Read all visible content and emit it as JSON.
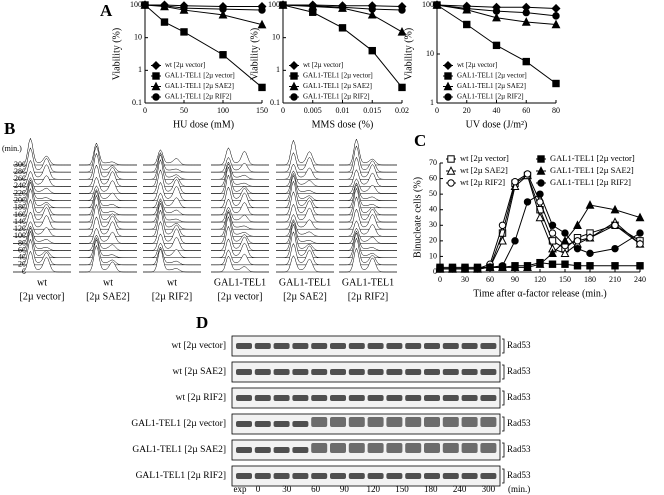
{
  "panel_labels": [
    "A",
    "B",
    "C",
    "D"
  ],
  "chart_data": [
    {
      "type": "line",
      "xlabel": "HU dose (mM)",
      "ylabel": "Viability (%)",
      "x": [
        0,
        25,
        50,
        100,
        150
      ],
      "xlim": [
        0,
        150
      ],
      "xticks": [
        0,
        50,
        100,
        150
      ],
      "ylim": [
        0.1,
        100
      ],
      "yticks": [
        0.1,
        1,
        10,
        100
      ],
      "yscale": "log",
      "legend": "lower left",
      "legend_columns": 1,
      "series": [
        {
          "name": "wt [2µ vector]",
          "color": "#000000",
          "marker": "diamond",
          "filled": true,
          "values": [
            100,
            100,
            95,
            90,
            90
          ]
        },
        {
          "name": "GAL1-TEL1 [2µ vector]",
          "color": "#000000",
          "marker": "square",
          "filled": true,
          "values": [
            100,
            30,
            15,
            3,
            0.3
          ]
        },
        {
          "name": "GAL1-TEL1 [2µ SAE2]",
          "color": "#000000",
          "marker": "triangle",
          "filled": true,
          "values": [
            100,
            90,
            70,
            50,
            25
          ]
        },
        {
          "name": "GAL1-TEL1 [2µ RIF2]",
          "color": "#000000",
          "marker": "circle",
          "filled": true,
          "values": [
            100,
            95,
            80,
            75,
            70
          ]
        }
      ]
    },
    {
      "type": "line",
      "xlabel": "MMS dose (%)",
      "ylabel": "Viability (%)",
      "x": [
        0,
        0.005,
        0.01,
        0.015,
        0.02
      ],
      "xlim": [
        0,
        0.02
      ],
      "xticks": [
        0,
        0.005,
        0.01,
        0.015,
        0.02
      ],
      "ylim": [
        0.1,
        100
      ],
      "yticks": [
        0.1,
        1,
        10,
        100
      ],
      "yscale": "log",
      "legend": "lower left",
      "legend_columns": 1,
      "series": [
        {
          "name": "wt [2µ vector]",
          "color": "#000000",
          "marker": "diamond",
          "filled": true,
          "values": [
            100,
            100,
            95,
            95,
            90
          ]
        },
        {
          "name": "GAL1-TEL1 [2µ vector]",
          "color": "#000000",
          "marker": "square",
          "filled": true,
          "values": [
            100,
            60,
            20,
            4,
            0.3
          ]
        },
        {
          "name": "GAL1-TEL1 [2µ SAE2]",
          "color": "#000000",
          "marker": "triangle",
          "filled": true,
          "values": [
            100,
            90,
            80,
            50,
            15
          ]
        },
        {
          "name": "GAL1-TEL1 [2µ RIF2]",
          "color": "#000000",
          "marker": "circle",
          "filled": true,
          "values": [
            100,
            95,
            85,
            75,
            70
          ]
        }
      ]
    },
    {
      "type": "line",
      "xlabel": "UV dose (J/m²)",
      "ylabel": "Viability (%)",
      "x": [
        0,
        20,
        40,
        60,
        80
      ],
      "xlim": [
        0,
        80
      ],
      "xticks": [
        0,
        20,
        40,
        60,
        80
      ],
      "ylim": [
        1,
        100
      ],
      "yticks": [
        1,
        10,
        100
      ],
      "yscale": "log",
      "legend": "lower left",
      "legend_columns": 1,
      "series": [
        {
          "name": "wt [2µ vector]",
          "color": "#000000",
          "marker": "diamond",
          "filled": true,
          "values": [
            100,
            95,
            90,
            90,
            85
          ]
        },
        {
          "name": "GAL1-TEL1 [2µ vector]",
          "color": "#000000",
          "marker": "square",
          "filled": true,
          "values": [
            100,
            40,
            15,
            7,
            2.5
          ]
        },
        {
          "name": "GAL1-TEL1 [2µ SAE2]",
          "color": "#000000",
          "marker": "triangle",
          "filled": true,
          "values": [
            100,
            80,
            55,
            45,
            40
          ]
        },
        {
          "name": "GAL1-TEL1 [2µ RIF2]",
          "color": "#000000",
          "marker": "circle",
          "filled": true,
          "values": [
            100,
            85,
            75,
            70,
            60
          ]
        }
      ]
    },
    {
      "type": "line",
      "xlabel": "Time after α-factor release (min.)",
      "ylabel": "Binucleate cells (%)",
      "x": [
        0,
        15,
        30,
        45,
        60,
        75,
        90,
        105,
        120,
        135,
        150,
        165,
        180,
        210,
        240
      ],
      "xlim": [
        0,
        240
      ],
      "xticks": [
        0,
        30,
        60,
        90,
        120,
        150,
        180,
        210,
        240
      ],
      "ylim": [
        0,
        70
      ],
      "yticks": [
        0,
        10,
        20,
        30,
        40,
        50,
        60,
        70
      ],
      "yscale": "linear",
      "legend": "upper left",
      "legend_columns": 2,
      "series": [
        {
          "name": "wt [2µ vector]",
          "color": "#000000",
          "marker": "square",
          "filled": false,
          "values": [
            2,
            2,
            2,
            2,
            3,
            25,
            57,
            62,
            40,
            20,
            15,
            22,
            25,
            30,
            20
          ]
        },
        {
          "name": "wt [2µ SAE2]",
          "color": "#000000",
          "marker": "triangle",
          "filled": false,
          "values": [
            2,
            2,
            2,
            2,
            3,
            20,
            55,
            62,
            35,
            15,
            12,
            18,
            22,
            32,
            18
          ]
        },
        {
          "name": "wt [2µ RIF2]",
          "color": "#000000",
          "marker": "circle",
          "filled": false,
          "values": [
            2,
            2,
            2,
            2,
            5,
            30,
            58,
            63,
            45,
            25,
            17,
            20,
            22,
            30,
            18
          ]
        },
        {
          "name": "GAL1-TEL1 [2µ vector]",
          "color": "#000000",
          "marker": "square",
          "filled": true,
          "values": [
            3,
            3,
            3,
            3,
            3,
            3,
            4,
            4,
            6,
            5,
            5,
            4,
            4,
            4,
            4
          ]
        },
        {
          "name": "GAL1-TEL1 [2µ SAE2]",
          "color": "#000000",
          "marker": "triangle",
          "filled": true,
          "values": [
            2,
            2,
            2,
            2,
            3,
            3,
            3,
            3,
            5,
            12,
            20,
            30,
            43,
            40,
            35
          ]
        },
        {
          "name": "GAL1-TEL1 [2µ RIF2]",
          "color": "#000000",
          "marker": "circle",
          "filled": true,
          "values": [
            2,
            2,
            2,
            2,
            3,
            4,
            20,
            45,
            50,
            30,
            25,
            15,
            12,
            15,
            25
          ]
        }
      ]
    }
  ],
  "flow_cytometry": {
    "y_unit": "(min.)",
    "yticks": [
      0,
      20,
      40,
      60,
      80,
      100,
      120,
      140,
      160,
      180,
      200,
      220,
      240,
      260,
      280,
      300
    ],
    "columns": [
      {
        "strain": "wt",
        "plasmid": "[2µ vector]"
      },
      {
        "strain": "wt",
        "plasmid": "[2µ SAE2]"
      },
      {
        "strain": "wt",
        "plasmid": "[2µ RIF2]"
      },
      {
        "strain": "GAL1-TEL1",
        "plasmid": "[2µ vector]"
      },
      {
        "strain": "GAL1-TEL1",
        "plasmid": "[2µ SAE2]"
      },
      {
        "strain": "GAL1-TEL1",
        "plasmid": "[2µ RIF2]"
      }
    ]
  },
  "western_blot": {
    "rows": [
      {
        "label": "wt [2µ vector]",
        "protein": "Rad53"
      },
      {
        "label": "wt [2µ SAE2]",
        "protein": "Rad53"
      },
      {
        "label": "wt [2µ RIF2]",
        "protein": "Rad53"
      },
      {
        "label": "GAL1-TEL1 [2µ vector]",
        "protein": "Rad53"
      },
      {
        "label": "GAL1-TEL1 [2µ SAE2]",
        "protein": "Rad53"
      },
      {
        "label": "GAL1-TEL1 [2µ RIF2]",
        "protein": "Rad53"
      }
    ],
    "lanes": [
      "exp",
      "0",
      "30",
      "60",
      "90",
      "120",
      "150",
      "180",
      "240",
      "300"
    ],
    "unit": "(min.)"
  }
}
